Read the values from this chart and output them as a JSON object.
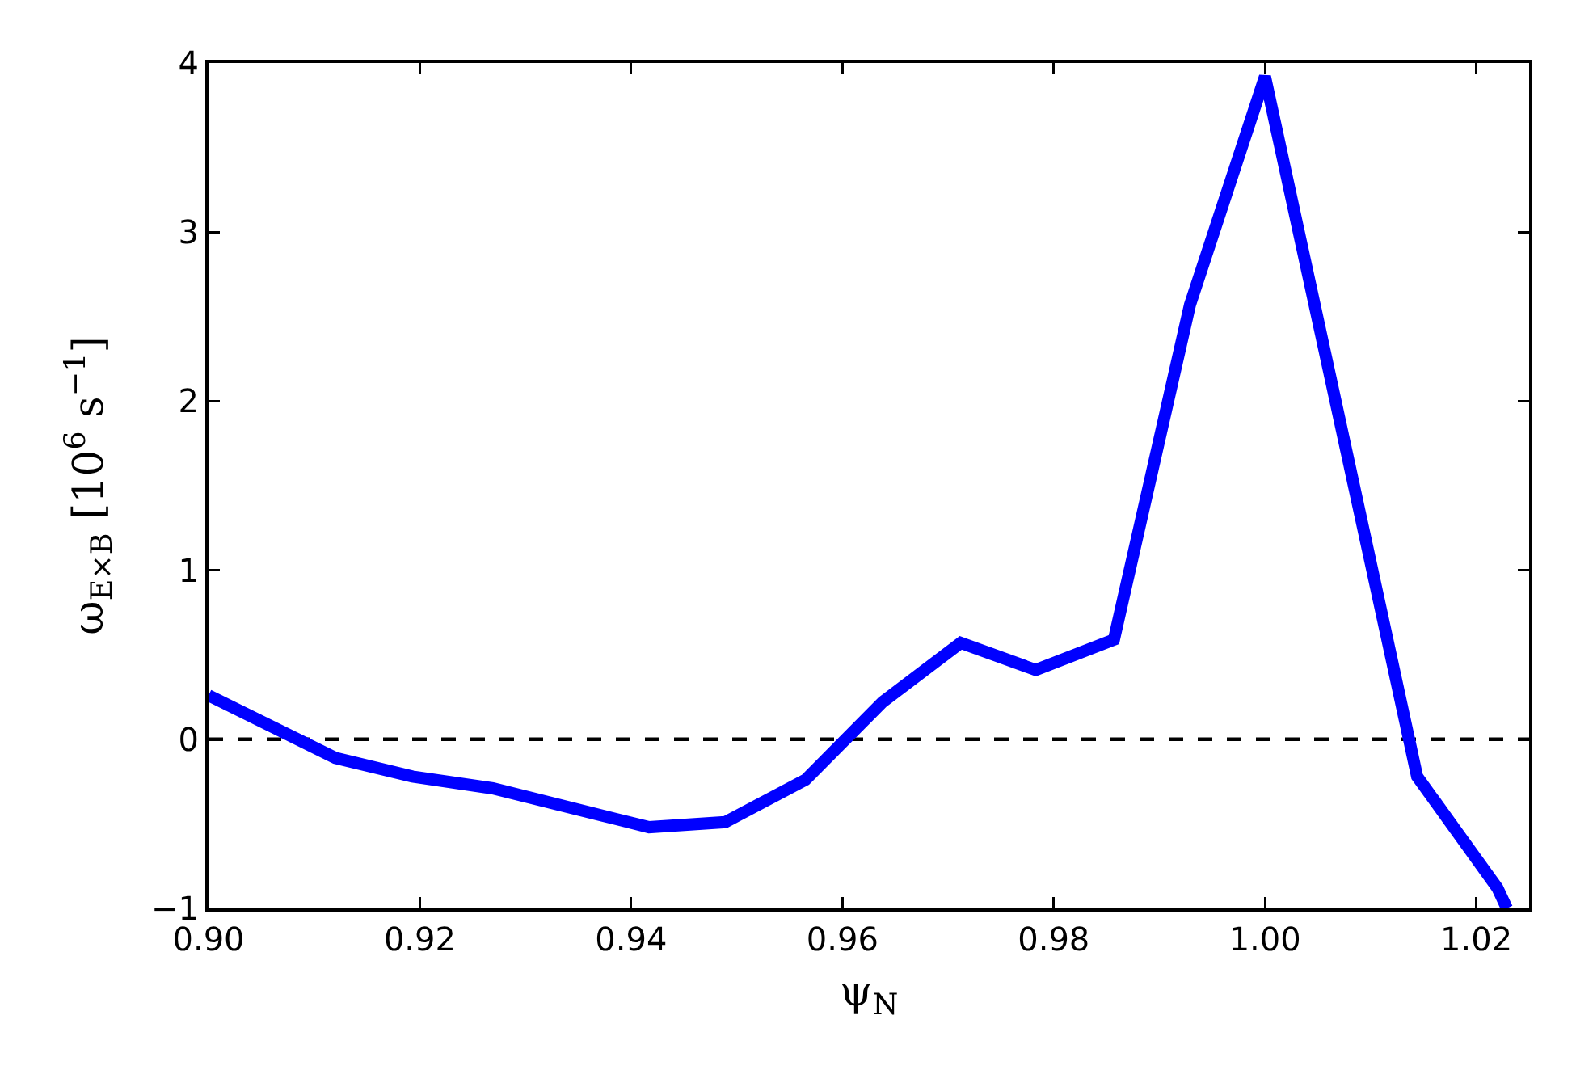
{
  "chart_data": {
    "type": "line",
    "xlabel": "ψ$_{N}$",
    "ylabel": "ω$_{E×B}$ [10$^{6}$ s$^{−1}$]",
    "x": [
      0.9,
      0.912,
      0.9193,
      0.9269,
      0.9417,
      0.9489,
      0.9565,
      0.9638,
      0.9712,
      0.9783,
      0.9857,
      0.9929,
      1.0,
      1.0144,
      1.022,
      1.0229
    ],
    "series": [
      {
        "color": "#0000ff",
        "values": [
          0.26,
          -0.11,
          -0.22,
          -0.29,
          -0.52,
          -0.49,
          -0.24,
          0.22,
          0.57,
          0.41,
          0.59,
          2.57,
          3.92,
          -0.22,
          -0.88,
          -1
        ]
      }
    ],
    "xlim": [
      0.9,
      1.025
    ],
    "ylim": [
      -1,
      4
    ],
    "xticks": [
      {
        "value": 0.9,
        "label": "0.90"
      },
      0.92,
      0.94,
      0.96,
      0.98,
      {
        "value": 1,
        "label": "1.00"
      },
      1.02
    ],
    "yticks": [
      {
        "value": -1,
        "label": "−1"
      },
      0,
      1,
      2,
      3,
      4
    ],
    "ref_lines": [
      {
        "axis": "y",
        "value": 0,
        "color": "#000000",
        "line_style": "dashed"
      }
    ],
    "marker": "none",
    "line_style": "solid"
  }
}
